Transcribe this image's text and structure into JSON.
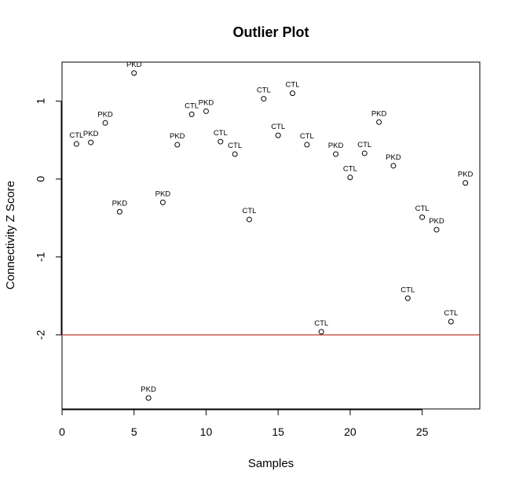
{
  "chart_data": {
    "type": "scatter",
    "title": "Outlier Plot",
    "xlabel": "Samples",
    "ylabel": "Connectivity Z Score",
    "xlim": [
      0,
      29
    ],
    "ylim": [
      -2.95,
      1.5
    ],
    "x_ticks": [
      0,
      5,
      10,
      15,
      20,
      25
    ],
    "y_ticks": [
      -2,
      -1,
      0,
      1
    ],
    "x_tick_labels": [
      "0",
      "5",
      "10",
      "15",
      "20",
      "25"
    ],
    "y_tick_labels": [
      "-2",
      "-1",
      "0",
      "1"
    ],
    "grid": false,
    "threshold": {
      "y": -2,
      "color": "#c0392b"
    },
    "point_color": "#000000",
    "points": [
      {
        "x": 1,
        "y": 0.45,
        "label": "CTL"
      },
      {
        "x": 2,
        "y": 0.47,
        "label": "PKD"
      },
      {
        "x": 3,
        "y": 0.72,
        "label": "PKD"
      },
      {
        "x": 4,
        "y": -0.42,
        "label": "PKD"
      },
      {
        "x": 5,
        "y": 1.36,
        "label": "PKD"
      },
      {
        "x": 6,
        "y": -2.81,
        "label": "PKD"
      },
      {
        "x": 7,
        "y": -0.3,
        "label": "PKD"
      },
      {
        "x": 8,
        "y": 0.44,
        "label": "PKD"
      },
      {
        "x": 9,
        "y": 0.83,
        "label": "CTL"
      },
      {
        "x": 10,
        "y": 0.87,
        "label": "PKD"
      },
      {
        "x": 11,
        "y": 0.48,
        "label": "CTL"
      },
      {
        "x": 12,
        "y": 0.32,
        "label": "CTL"
      },
      {
        "x": 13,
        "y": -0.52,
        "label": "CTL"
      },
      {
        "x": 14,
        "y": 1.03,
        "label": "CTL"
      },
      {
        "x": 15,
        "y": 0.56,
        "label": "CTL"
      },
      {
        "x": 16,
        "y": 1.1,
        "label": "CTL"
      },
      {
        "x": 17,
        "y": 0.44,
        "label": "CTL"
      },
      {
        "x": 18,
        "y": -1.96,
        "label": "CTL"
      },
      {
        "x": 19,
        "y": 0.32,
        "label": "PKD"
      },
      {
        "x": 20,
        "y": 0.02,
        "label": "CTL"
      },
      {
        "x": 21,
        "y": 0.33,
        "label": "CTL"
      },
      {
        "x": 22,
        "y": 0.73,
        "label": "PKD"
      },
      {
        "x": 23,
        "y": 0.17,
        "label": "PKD"
      },
      {
        "x": 24,
        "y": -1.53,
        "label": "CTL"
      },
      {
        "x": 25,
        "y": -0.49,
        "label": "CTL"
      },
      {
        "x": 26,
        "y": -0.65,
        "label": "PKD"
      },
      {
        "x": 27,
        "y": -1.83,
        "label": "CTL"
      },
      {
        "x": 28,
        "y": -0.05,
        "label": "PKD"
      }
    ]
  }
}
